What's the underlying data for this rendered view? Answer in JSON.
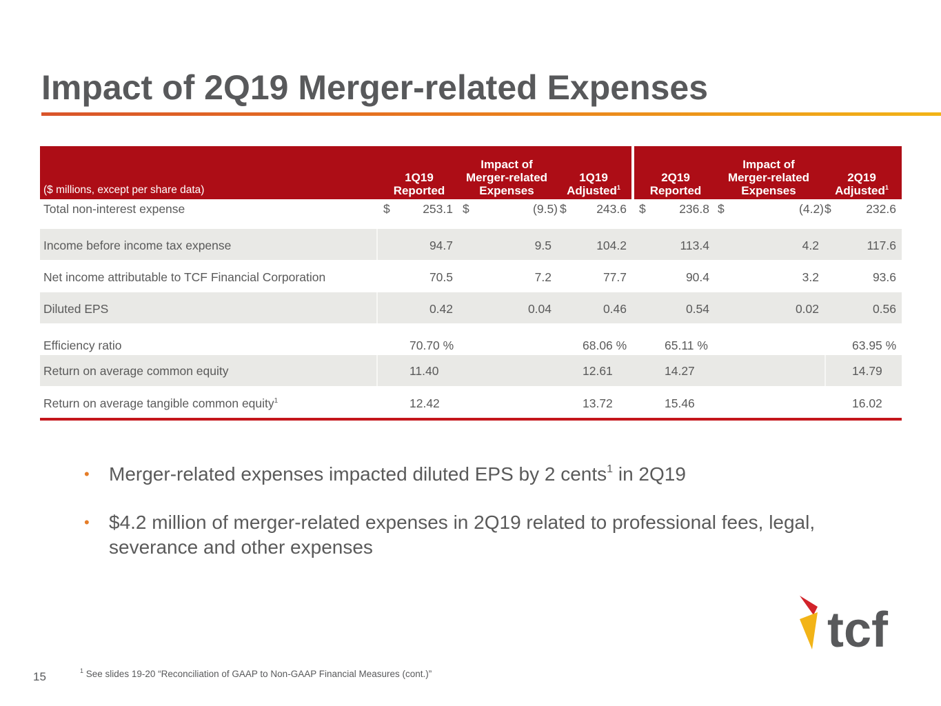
{
  "title": "Impact of 2Q19 Merger-related Expenses",
  "table": {
    "note": "($ millions, except per share data)",
    "columns": [
      {
        "l1": "",
        "l2": "1Q19",
        "l3": "Reported",
        "sup": ""
      },
      {
        "l1": "Impact of",
        "l2": "Merger-related",
        "l3": "Expenses",
        "sup": ""
      },
      {
        "l1": "",
        "l2": "1Q19",
        "l3": "Adjusted",
        "sup": "1"
      },
      {
        "l1": "",
        "l2": "2Q19",
        "l3": "Reported",
        "sup": ""
      },
      {
        "l1": "Impact of",
        "l2": "Merger-related",
        "l3": "Expenses",
        "sup": ""
      },
      {
        "l1": "",
        "l2": "2Q19",
        "l3": "Adjusted",
        "sup": "1"
      }
    ],
    "rows": [
      {
        "label": "Total non-interest expense",
        "dollar": "$",
        "values": [
          "253.1",
          "(9.5)",
          "243.6",
          "236.8",
          "(4.2)",
          "232.6"
        ]
      },
      {
        "label": "Income before income tax expense",
        "values": [
          "94.7",
          "9.5",
          "104.2",
          "113.4",
          "4.2",
          "117.6"
        ]
      },
      {
        "label": "Net income attributable to TCF Financial Corporation",
        "values": [
          "70.5",
          "7.2",
          "77.7",
          "90.4",
          "3.2",
          "93.6"
        ]
      },
      {
        "label": "Diluted EPS",
        "values": [
          "0.42",
          "0.04",
          "0.46",
          "0.54",
          "0.02",
          "0.56"
        ]
      },
      {
        "label": "Efficiency ratio",
        "values": [
          "70.70 %",
          "",
          "68.06 %",
          "65.11 %",
          "",
          "63.95 %"
        ]
      },
      {
        "label": "Return on average common equity",
        "values": [
          "11.40",
          "",
          "12.61",
          "14.27",
          "",
          "14.79"
        ]
      },
      {
        "label": "Return on average tangible common equity",
        "sup": "1",
        "values": [
          "12.42",
          "",
          "13.72",
          "15.46",
          "",
          "16.02"
        ]
      }
    ]
  },
  "bullets": [
    {
      "text": "Merger-related expenses impacted diluted EPS by 2 cents",
      "sup": "1",
      "tail": " in 2Q19"
    },
    {
      "text": "$4.2 million of merger-related expenses in 2Q19 related to professional fees, legal, severance and other expenses",
      "sup": "",
      "tail": ""
    }
  ],
  "bullet_glyph": "•",
  "page_number": "15",
  "footnote": {
    "sup": "1",
    "text": "See slides 19-20 “Reconciliation of GAAP to Non-GAAP Financial Measures (cont.)”"
  },
  "logo": {
    "text": "tcf",
    "colors": {
      "red": "#d2232a",
      "yellow": "#f2b417",
      "gray": "#58595b"
    }
  },
  "colors": {
    "header": "#ad0d16",
    "accent": "#e57d28",
    "shade": "#e9e9e6"
  }
}
